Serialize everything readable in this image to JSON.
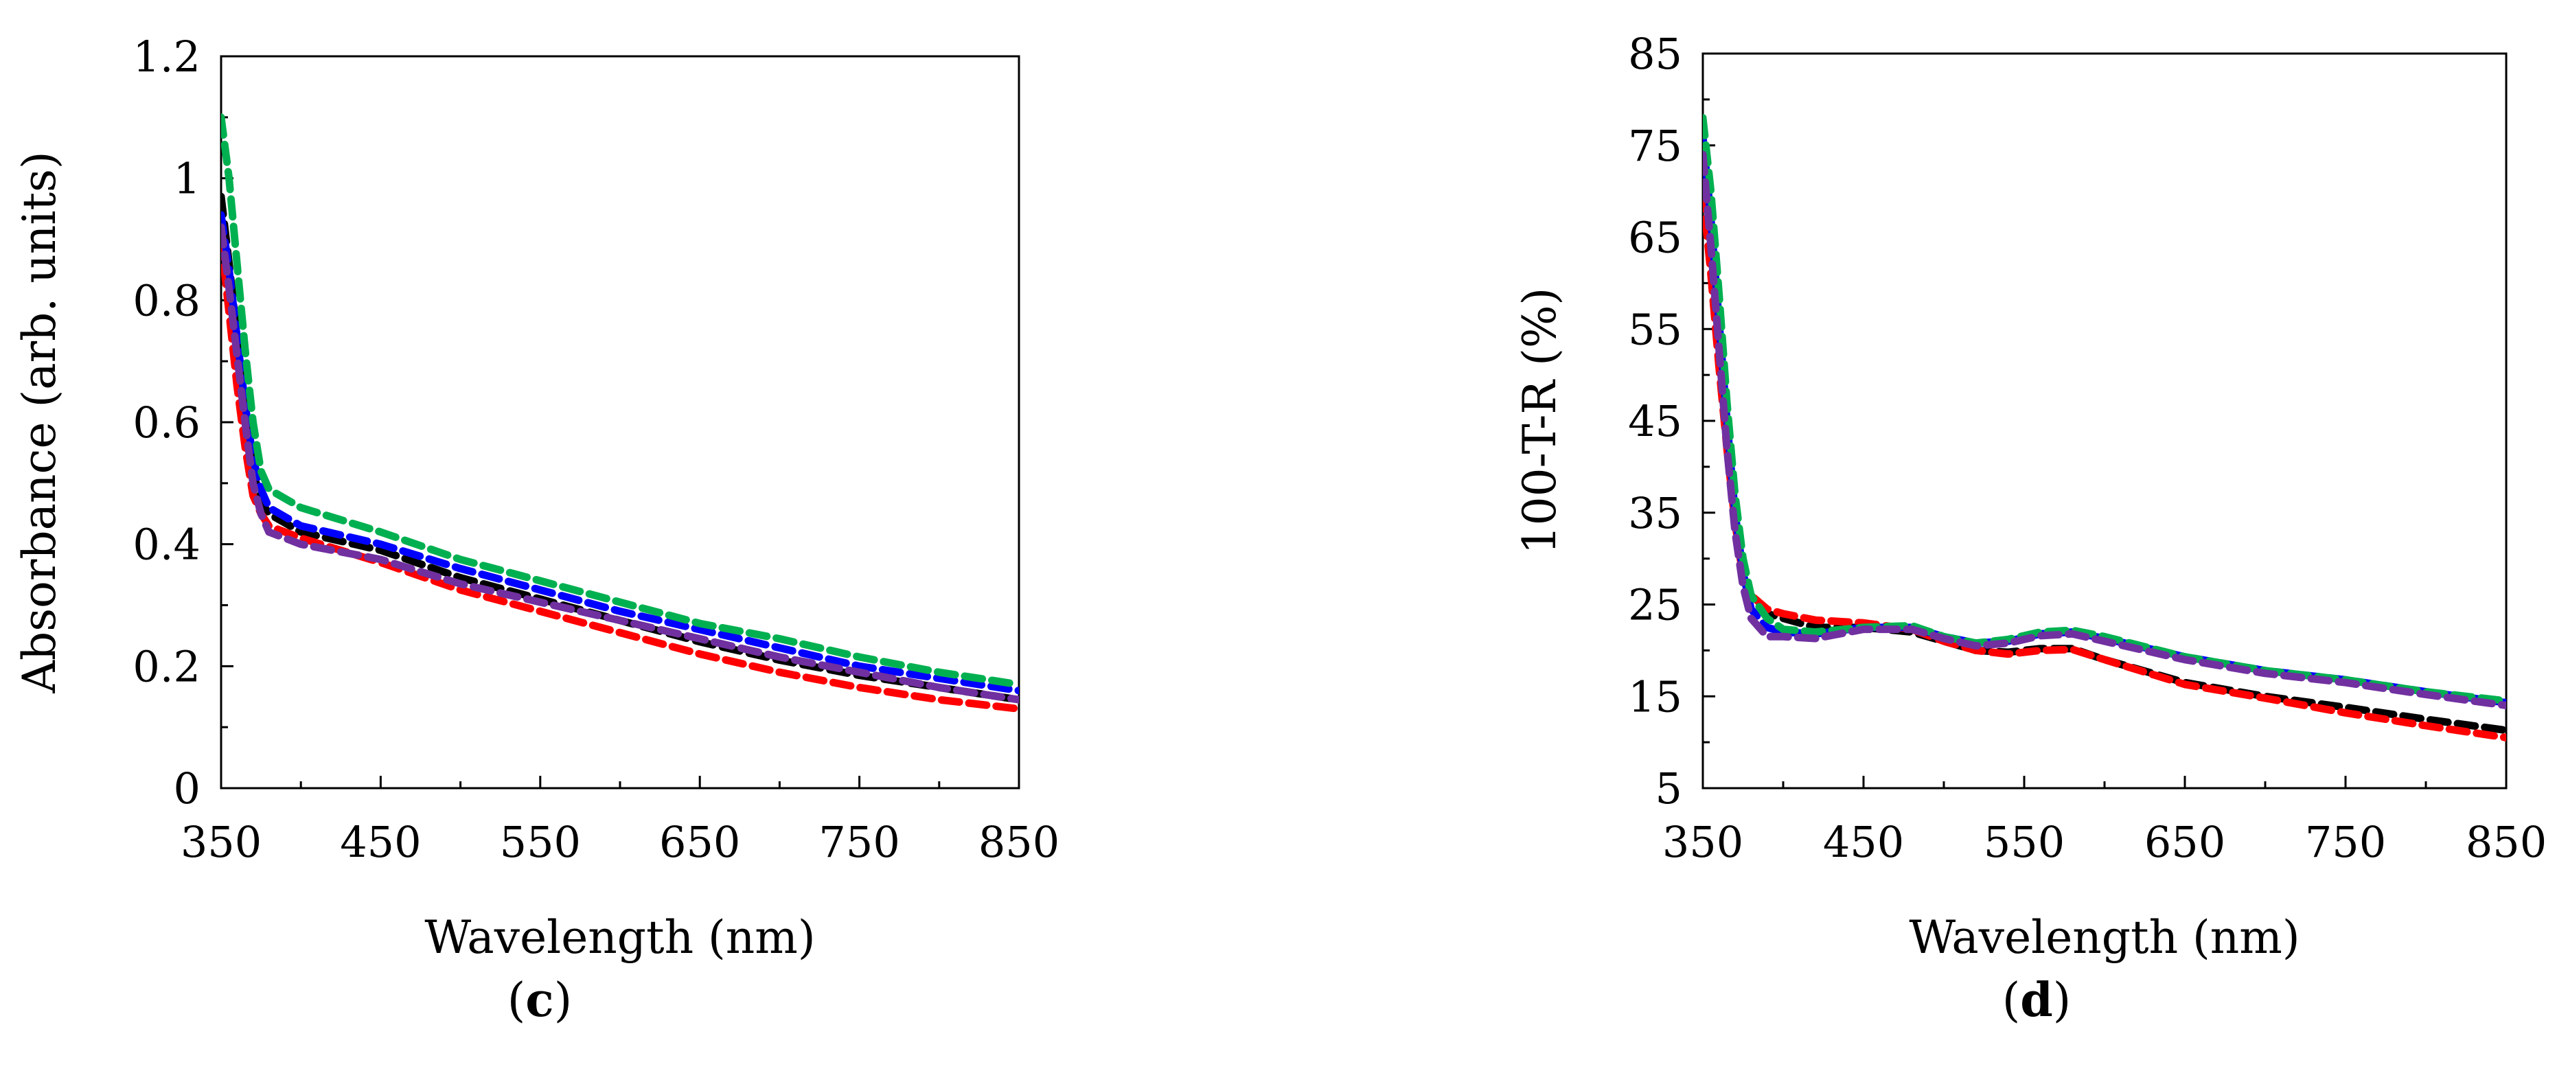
{
  "chart_data": [
    {
      "type": "line",
      "panel_label": "c",
      "xlabel": "Wavelength (nm)",
      "ylabel": "Absorbance (arb. units)",
      "xlim": [
        350,
        850
      ],
      "ylim": [
        0,
        1.2
      ],
      "x_ticks": [
        350,
        450,
        550,
        650,
        750,
        850
      ],
      "y_ticks": [
        0,
        0.2,
        0.4,
        0.6,
        0.8,
        1,
        1.2
      ],
      "x_tick_labels": [
        "350",
        "450",
        "550",
        "650",
        "750",
        "850"
      ],
      "y_tick_labels": [
        "0",
        "0.2",
        "0.4",
        "0.6",
        "0.8",
        "1",
        "1.2"
      ],
      "line_style": "dashed",
      "series": [
        {
          "name": "black",
          "color": "#000000",
          "x": [
            350,
            355,
            360,
            365,
            370,
            375,
            380,
            400,
            450,
            500,
            550,
            600,
            650,
            700,
            750,
            800,
            850
          ],
          "y": [
            0.97,
            0.86,
            0.74,
            0.63,
            0.52,
            0.47,
            0.45,
            0.42,
            0.39,
            0.345,
            0.31,
            0.275,
            0.24,
            0.21,
            0.185,
            0.165,
            0.145
          ]
        },
        {
          "name": "red",
          "color": "#ff0000",
          "x": [
            350,
            355,
            360,
            365,
            370,
            375,
            380,
            400,
            450,
            500,
            550,
            600,
            650,
            700,
            750,
            800,
            850
          ],
          "y": [
            0.9,
            0.78,
            0.66,
            0.56,
            0.48,
            0.45,
            0.43,
            0.41,
            0.37,
            0.325,
            0.29,
            0.255,
            0.22,
            0.19,
            0.165,
            0.145,
            0.13
          ]
        },
        {
          "name": "blue",
          "color": "#0000ff",
          "x": [
            350,
            355,
            360,
            365,
            370,
            375,
            380,
            400,
            450,
            500,
            550,
            600,
            650,
            700,
            750,
            800,
            850
          ],
          "y": [
            0.94,
            0.85,
            0.74,
            0.63,
            0.54,
            0.49,
            0.46,
            0.43,
            0.4,
            0.36,
            0.325,
            0.29,
            0.26,
            0.23,
            0.2,
            0.18,
            0.16
          ]
        },
        {
          "name": "green",
          "color": "#00b050",
          "x": [
            350,
            355,
            360,
            365,
            370,
            375,
            380,
            400,
            450,
            500,
            550,
            600,
            650,
            700,
            750,
            800,
            850
          ],
          "y": [
            1.1,
            1.0,
            0.86,
            0.72,
            0.6,
            0.52,
            0.49,
            0.46,
            0.42,
            0.375,
            0.34,
            0.305,
            0.27,
            0.245,
            0.215,
            0.19,
            0.17
          ]
        },
        {
          "name": "purple",
          "color": "#7030a0",
          "x": [
            350,
            355,
            360,
            365,
            370,
            375,
            380,
            400,
            450,
            500,
            550,
            600,
            650,
            700,
            750,
            800,
            850
          ],
          "y": [
            0.92,
            0.82,
            0.71,
            0.6,
            0.5,
            0.45,
            0.42,
            0.4,
            0.375,
            0.335,
            0.305,
            0.275,
            0.245,
            0.215,
            0.19,
            0.165,
            0.145
          ]
        }
      ]
    },
    {
      "type": "line",
      "panel_label": "d",
      "xlabel": "Wavelength (nm)",
      "ylabel": "100-T-R (%)",
      "xlim": [
        350,
        850
      ],
      "ylim": [
        5,
        85
      ],
      "x_ticks": [
        350,
        450,
        550,
        650,
        750,
        850
      ],
      "y_ticks": [
        5,
        15,
        25,
        35,
        45,
        55,
        65,
        75,
        85
      ],
      "x_tick_labels": [
        "350",
        "450",
        "550",
        "650",
        "750",
        "850"
      ],
      "y_tick_labels": [
        "5",
        "15",
        "25",
        "35",
        "45",
        "55",
        "65",
        "75",
        "85"
      ],
      "line_style": "dashed",
      "series": [
        {
          "name": "black",
          "color": "#000000",
          "x": [
            350,
            355,
            360,
            365,
            370,
            375,
            380,
            390,
            400,
            420,
            450,
            480,
            500,
            520,
            540,
            560,
            580,
            600,
            650,
            700,
            750,
            800,
            850
          ],
          "y": [
            75,
            66,
            55,
            44,
            35,
            29,
            26,
            24,
            23.5,
            22.5,
            22.5,
            22,
            21,
            20,
            19.8,
            20.2,
            20.2,
            19,
            16.5,
            15,
            13.8,
            12.5,
            11.3
          ]
        },
        {
          "name": "red",
          "color": "#ff0000",
          "x": [
            350,
            355,
            360,
            365,
            370,
            375,
            380,
            390,
            400,
            420,
            450,
            480,
            500,
            520,
            540,
            560,
            580,
            600,
            650,
            700,
            750,
            800,
            850
          ],
          "y": [
            70,
            61,
            51,
            42,
            34,
            28,
            26,
            24.5,
            24,
            23.3,
            23,
            22.3,
            21,
            20,
            19.6,
            20,
            20.1,
            19,
            16.3,
            14.8,
            13.2,
            11.8,
            10.5
          ]
        },
        {
          "name": "blue",
          "color": "#0000ff",
          "x": [
            350,
            355,
            360,
            365,
            370,
            375,
            380,
            390,
            400,
            420,
            450,
            480,
            500,
            520,
            540,
            560,
            580,
            600,
            650,
            700,
            750,
            800,
            850
          ],
          "y": [
            76,
            67,
            56,
            45,
            35,
            28.5,
            24.5,
            22.5,
            22,
            21.8,
            22.5,
            22.5,
            21.5,
            20.8,
            21,
            21.8,
            22,
            21.3,
            19.3,
            17.8,
            16.8,
            15.5,
            14.3
          ]
        },
        {
          "name": "green",
          "color": "#00b050",
          "x": [
            350,
            355,
            360,
            365,
            370,
            375,
            380,
            390,
            400,
            420,
            450,
            480,
            500,
            520,
            540,
            560,
            580,
            600,
            650,
            700,
            750,
            800,
            850
          ],
          "y": [
            78,
            70,
            59,
            47,
            37,
            30,
            26,
            23.5,
            22.3,
            22,
            22.5,
            22.7,
            21.5,
            20.8,
            21.2,
            22,
            22.2,
            21.5,
            19.3,
            17.8,
            16.8,
            15.5,
            14.5
          ]
        },
        {
          "name": "purple",
          "color": "#7030a0",
          "x": [
            350,
            355,
            360,
            365,
            370,
            375,
            380,
            390,
            400,
            420,
            450,
            480,
            500,
            520,
            540,
            560,
            580,
            600,
            650,
            700,
            750,
            800,
            850
          ],
          "y": [
            74,
            64,
            53,
            42,
            33,
            27,
            23.5,
            21.5,
            21.5,
            21.3,
            22.3,
            22.3,
            21.3,
            20.5,
            20.8,
            21.6,
            21.8,
            21,
            19,
            17.5,
            16.5,
            15.2,
            14
          ]
        }
      ]
    }
  ]
}
